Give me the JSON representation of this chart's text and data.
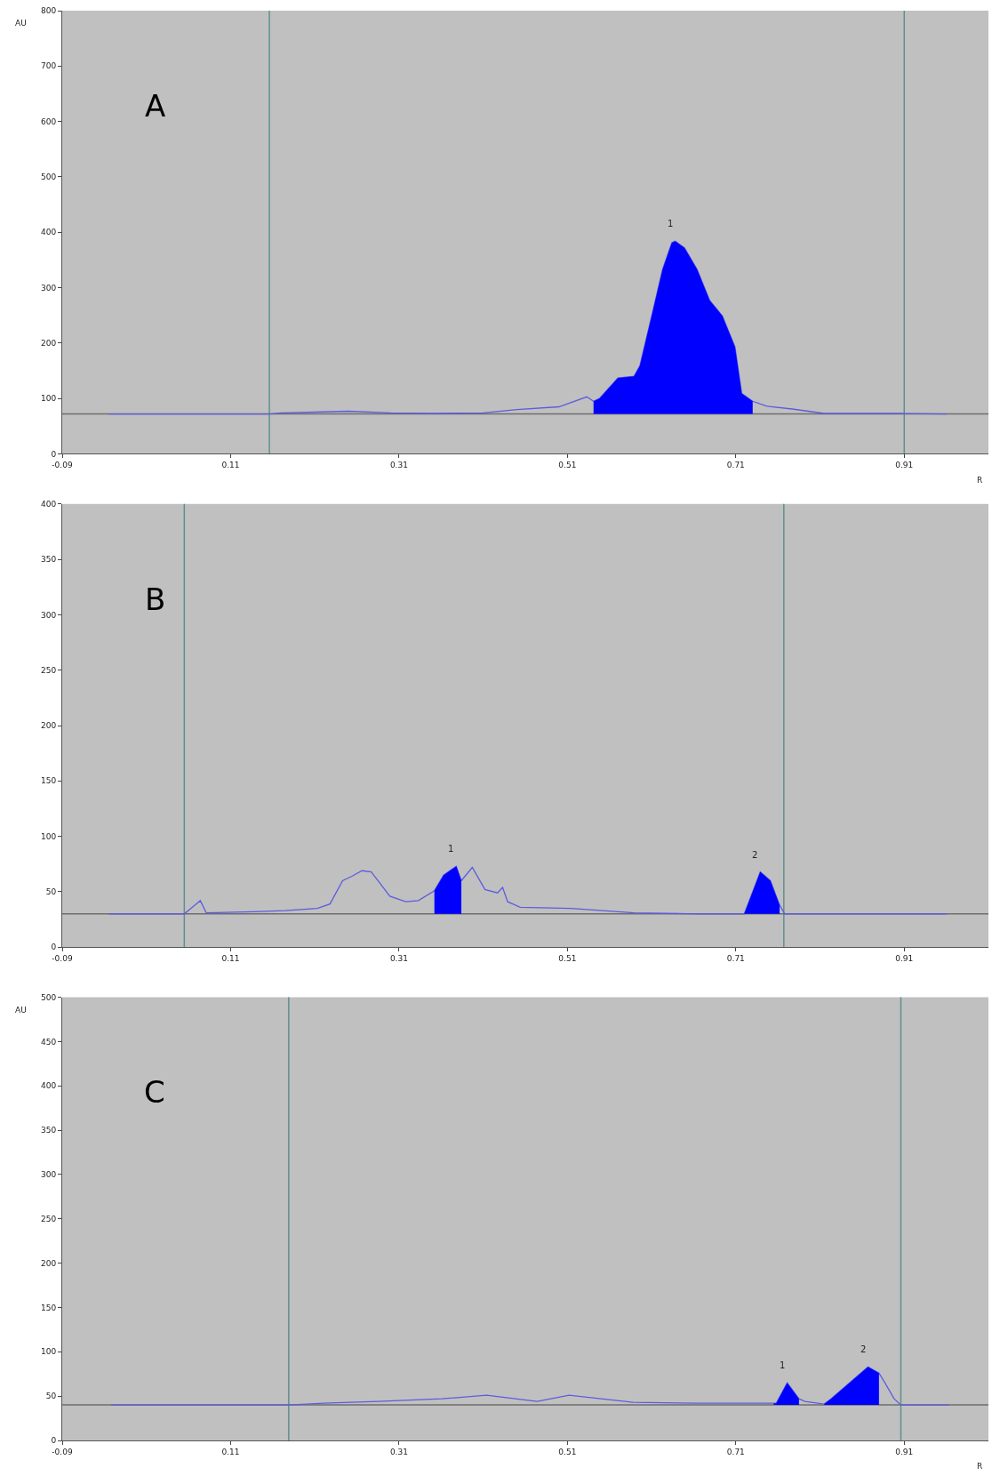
{
  "chart_data": [
    {
      "type": "line",
      "title": "A",
      "xlabel": "R",
      "ylabel": "AU",
      "xlim": [
        -0.09,
        1.01
      ],
      "xticks": [
        -0.09,
        0.11,
        0.31,
        0.51,
        0.71,
        0.91
      ],
      "ylim": [
        0,
        800
      ],
      "yticks": [
        0,
        100,
        200,
        300,
        400,
        500,
        600,
        700,
        800
      ],
      "grid": false,
      "series": [
        {
          "color": "#5c5ce0",
          "x": [
            -0.035,
            0.156,
            0.17,
            0.2,
            0.25,
            0.3,
            0.35,
            0.41,
            0.45,
            0.5,
            0.533,
            0.541,
            0.548,
            0.57,
            0.589,
            0.596,
            0.611,
            0.623,
            0.634,
            0.638,
            0.649,
            0.664,
            0.679,
            0.694,
            0.709,
            0.717,
            0.73,
            0.747,
            0.777,
            0.815,
            0.905,
            0.961
          ],
          "values": [
            72,
            72,
            74,
            75,
            77,
            74,
            73,
            74,
            80,
            85,
            103,
            95,
            100,
            137,
            140,
            159,
            255,
            333,
            381,
            384,
            372,
            333,
            277,
            249,
            193,
            109,
            95,
            86,
            81,
            73,
            73,
            72
          ]
        },
        {
          "type": "area",
          "color": "#0000ff",
          "x": [
            0.541,
            0.548,
            0.57,
            0.589,
            0.596,
            0.611,
            0.623,
            0.634,
            0.638,
            0.649,
            0.664,
            0.679,
            0.694,
            0.709,
            0.717,
            0.73
          ],
          "values": [
            95,
            100,
            137,
            140,
            159,
            255,
            333,
            381,
            384,
            372,
            333,
            277,
            249,
            193,
            109,
            95
          ]
        }
      ],
      "ref_lines": [
        {
          "axis": "x",
          "value": 0.156,
          "color": "#5f8f8f"
        },
        {
          "axis": "x",
          "value": 0.91,
          "color": "#5f8f8f"
        },
        {
          "axis": "y",
          "value": 72,
          "color": "#6e6e6e"
        }
      ],
      "annotations": [
        {
          "text": "1",
          "x": 0.638,
          "y": 384
        }
      ]
    },
    {
      "type": "line",
      "title": "B",
      "xlim": [
        -0.09,
        1.01
      ],
      "xticks": [
        -0.09,
        0.11,
        0.31,
        0.51,
        0.71,
        0.91
      ],
      "ylim": [
        0,
        400
      ],
      "yticks": [
        0,
        50,
        100,
        150,
        200,
        250,
        300,
        350,
        400
      ],
      "grid": false,
      "series": [
        {
          "color": "#5c5ce0",
          "x": [
            -0.035,
            0.055,
            0.063,
            0.074,
            0.081,
            0.138,
            0.175,
            0.213,
            0.228,
            0.243,
            0.254,
            0.266,
            0.277,
            0.288,
            0.299,
            0.318,
            0.333,
            0.352,
            0.363,
            0.378,
            0.384,
            0.397,
            0.412,
            0.427,
            0.433,
            0.439,
            0.454,
            0.514,
            0.589,
            0.664,
            0.72,
            0.739,
            0.751,
            0.762,
            0.768,
            0.961
          ],
          "values": [
            30,
            30,
            35,
            42,
            31,
            32,
            33,
            35,
            39,
            60,
            64,
            69,
            68,
            57,
            46,
            41,
            42,
            51,
            65,
            73,
            60,
            72,
            52,
            49,
            54,
            41,
            36,
            35,
            31,
            30,
            30,
            68,
            60,
            38,
            30,
            30
          ]
        },
        {
          "type": "area",
          "color": "#0000ff",
          "x": [
            0.352,
            0.363,
            0.378,
            0.384
          ],
          "values": [
            51,
            65,
            73,
            60
          ]
        },
        {
          "type": "area",
          "color": "#0000ff",
          "x": [
            0.72,
            0.739,
            0.751,
            0.762
          ],
          "values": [
            30,
            68,
            60,
            38
          ]
        }
      ],
      "ref_lines": [
        {
          "axis": "x",
          "value": 0.055,
          "color": "#5f8f8f"
        },
        {
          "axis": "x",
          "value": 0.767,
          "color": "#5f8f8f"
        },
        {
          "axis": "y",
          "value": 30,
          "color": "#6e6e6e"
        }
      ],
      "annotations": [
        {
          "text": "1",
          "x": 0.378,
          "y": 73
        },
        {
          "text": "2",
          "x": 0.739,
          "y": 68
        }
      ]
    },
    {
      "type": "line",
      "title": "C",
      "xlabel": "R",
      "ylabel": "AU",
      "xlim": [
        -0.09,
        1.01
      ],
      "xticks": [
        -0.09,
        0.11,
        0.31,
        0.51,
        0.71,
        0.91
      ],
      "ylim": [
        0,
        500
      ],
      "yticks": [
        0,
        50,
        100,
        150,
        200,
        250,
        300,
        350,
        400,
        450,
        500
      ],
      "grid": false,
      "series": [
        {
          "color": "#5c5ce0",
          "x": [
            -0.032,
            0.179,
            0.22,
            0.285,
            0.361,
            0.414,
            0.474,
            0.512,
            0.588,
            0.664,
            0.74,
            0.758,
            0.771,
            0.785,
            0.792,
            0.815,
            0.823,
            0.845,
            0.867,
            0.88,
            0.887,
            0.898,
            0.906,
            0.963
          ],
          "values": [
            40,
            40,
            42,
            44,
            47,
            51,
            44,
            51,
            43,
            42,
            42,
            42,
            65,
            47,
            44,
            41,
            47,
            65,
            83,
            76,
            65,
            47,
            40,
            40
          ]
        },
        {
          "type": "area",
          "color": "#0000ff",
          "x": [
            0.755,
            0.758,
            0.771,
            0.785
          ],
          "values": [
            42,
            42,
            65,
            47
          ]
        },
        {
          "type": "area",
          "color": "#0000ff",
          "x": [
            0.815,
            0.823,
            0.845,
            0.867,
            0.88
          ],
          "values": [
            41,
            47,
            65,
            83,
            76
          ]
        }
      ],
      "ref_lines": [
        {
          "axis": "x",
          "value": 0.179,
          "color": "#5f8f8f"
        },
        {
          "axis": "x",
          "value": 0.906,
          "color": "#5f8f8f"
        },
        {
          "axis": "y",
          "value": 40,
          "color": "#6e6e6e"
        }
      ],
      "annotations": [
        {
          "text": "1",
          "x": 0.771,
          "y": 65
        },
        {
          "text": "2",
          "x": 0.867,
          "y": 83
        }
      ]
    }
  ]
}
